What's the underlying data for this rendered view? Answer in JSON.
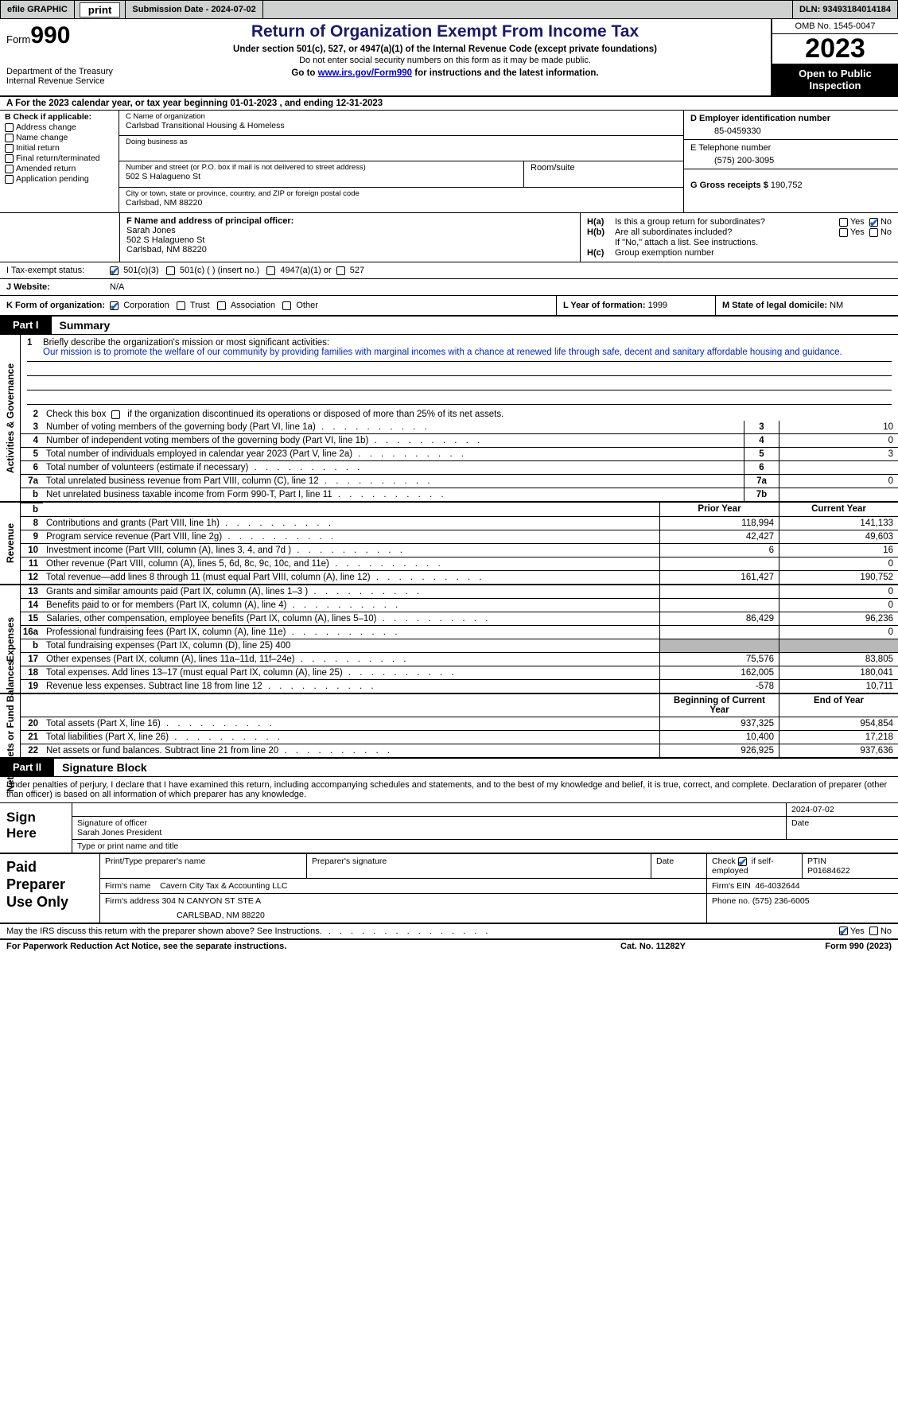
{
  "topbar": {
    "efile": "efile GRAPHIC",
    "print": "print",
    "submission": "Submission Date - 2024-07-02",
    "dln": "DLN: 93493184014184"
  },
  "header": {
    "form_label": "Form",
    "form_no": "990",
    "dept": "Department of the Treasury",
    "irs": "Internal Revenue Service",
    "title": "Return of Organization Exempt From Income Tax",
    "sub": "Under section 501(c), 527, or 4947(a)(1) of the Internal Revenue Code (except private foundations)",
    "sub2": "Do not enter social security numbers on this form as it may be made public.",
    "sub3_pre": "Go to ",
    "sub3_link": "www.irs.gov/Form990",
    "sub3_post": " for instructions and the latest information.",
    "omb": "OMB No. 1545-0047",
    "year": "2023",
    "public": "Open to Public Inspection"
  },
  "row_a": "A   For the 2023 calendar year, or tax year beginning 01-01-2023    , and ending 12-31-2023",
  "box_b": {
    "title": "B Check if applicable:",
    "opts": [
      "Address change",
      "Name change",
      "Initial return",
      "Final return/terminated",
      "Amended return",
      "Application pending"
    ],
    "c_lbl": "C Name of organization",
    "c_val": "Carlsbad Transitional Housing & Homeless",
    "dba_lbl": "Doing business as",
    "addr_lbl": "Number and street (or P.O. box if mail is not delivered to street address)",
    "addr_val": "502 S Halagueno St",
    "room_lbl": "Room/suite",
    "city_lbl": "City or town, state or province, country, and ZIP or foreign postal code",
    "city_val": "Carlsbad, NM   88220",
    "d_lbl": "D Employer identification number",
    "d_val": "85-0459330",
    "e_lbl": "E Telephone number",
    "e_val": "(575) 200-3095",
    "g_lbl": "G Gross receipts $",
    "g_val": "190,752"
  },
  "box_f": {
    "f_lbl": "F  Name and address of principal officer:",
    "f_name": "Sarah Jones",
    "f_addr1": "502 S Halagueno St",
    "f_addr2": "Carlsbad, NM   88220",
    "ha_lbl": "H(a)",
    "ha_txt": "Is this a group return for subordinates?",
    "hb_lbl": "H(b)",
    "hb_txt": "Are all subordinates included?",
    "hb_note": "If \"No,\" attach a list. See instructions.",
    "hc_lbl": "H(c)",
    "hc_txt": "Group exemption number",
    "yes": "Yes",
    "no": "No"
  },
  "tax_status": {
    "i_lbl": "I     Tax-exempt status:",
    "o1": "501(c)(3)",
    "o2": "501(c) (  ) (insert no.)",
    "o3": "4947(a)(1) or",
    "o4": "527",
    "j_lbl": "J    Website:",
    "j_val": "N/A"
  },
  "k_row": {
    "k_lbl": "K Form of organization:",
    "o1": "Corporation",
    "o2": "Trust",
    "o3": "Association",
    "o4": "Other",
    "l_lbl": "L Year of formation:",
    "l_val": "1999",
    "m_lbl": "M State of legal domicile:",
    "m_val": "NM"
  },
  "part1": {
    "box": "Part I",
    "title": "Summary",
    "mission_lbl": "Briefly describe the organization's mission or most significant activities:",
    "mission": "Our mission is to promote the welfare of our community by providing families with marginal incomes with a chance at renewed life through safe, decent and sanitary affordable housing and guidance.",
    "line2": "Check this box         if the organization discontinued its operations or disposed of more than 25% of its net assets.",
    "lines_gov": [
      {
        "n": "3",
        "d": "Number of voting members of the governing body (Part VI, line 1a)",
        "box": "3",
        "v": "10"
      },
      {
        "n": "4",
        "d": "Number of independent voting members of the governing body (Part VI, line 1b)",
        "box": "4",
        "v": "0"
      },
      {
        "n": "5",
        "d": "Total number of individuals employed in calendar year 2023 (Part V, line 2a)",
        "box": "5",
        "v": "3"
      },
      {
        "n": "6",
        "d": "Total number of volunteers (estimate if necessary)",
        "box": "6",
        "v": ""
      },
      {
        "n": "7a",
        "d": "Total unrelated business revenue from Part VIII, column (C), line 12",
        "box": "7a",
        "v": "0"
      },
      {
        "n": "b",
        "d": "Net unrelated business taxable income from Form 990-T, Part I, line 11",
        "box": "7b",
        "v": ""
      }
    ],
    "col_prior": "Prior Year",
    "col_curr": "Current Year",
    "lines_rev": [
      {
        "n": "8",
        "d": "Contributions and grants (Part VIII, line 1h)",
        "p": "118,994",
        "c": "141,133"
      },
      {
        "n": "9",
        "d": "Program service revenue (Part VIII, line 2g)",
        "p": "42,427",
        "c": "49,603"
      },
      {
        "n": "10",
        "d": "Investment income (Part VIII, column (A), lines 3, 4, and 7d )",
        "p": "6",
        "c": "16"
      },
      {
        "n": "11",
        "d": "Other revenue (Part VIII, column (A), lines 5, 6d, 8c, 9c, 10c, and 11e)",
        "p": "",
        "c": "0"
      },
      {
        "n": "12",
        "d": "Total revenue—add lines 8 through 11 (must equal Part VIII, column (A), line 12)",
        "p": "161,427",
        "c": "190,752"
      }
    ],
    "lines_exp": [
      {
        "n": "13",
        "d": "Grants and similar amounts paid (Part IX, column (A), lines 1–3 )",
        "p": "",
        "c": "0"
      },
      {
        "n": "14",
        "d": "Benefits paid to or for members (Part IX, column (A), line 4)",
        "p": "",
        "c": "0"
      },
      {
        "n": "15",
        "d": "Salaries, other compensation, employee benefits (Part IX, column (A), lines 5–10)",
        "p": "86,429",
        "c": "96,236"
      },
      {
        "n": "16a",
        "d": "Professional fundraising fees (Part IX, column (A), line 11e)",
        "p": "",
        "c": "0"
      },
      {
        "n": "b",
        "d": "Total fundraising expenses (Part IX, column (D), line 25) 400",
        "p": "shade",
        "c": "shade"
      },
      {
        "n": "17",
        "d": "Other expenses (Part IX, column (A), lines 11a–11d, 11f–24e)",
        "p": "75,576",
        "c": "83,805"
      },
      {
        "n": "18",
        "d": "Total expenses. Add lines 13–17 (must equal Part IX, column (A), line 25)",
        "p": "162,005",
        "c": "180,041"
      },
      {
        "n": "19",
        "d": "Revenue less expenses. Subtract line 18 from line 12",
        "p": "-578",
        "c": "10,711"
      }
    ],
    "col_beg": "Beginning of Current Year",
    "col_end": "End of Year",
    "lines_net": [
      {
        "n": "20",
        "d": "Total assets (Part X, line 16)",
        "p": "937,325",
        "c": "954,854"
      },
      {
        "n": "21",
        "d": "Total liabilities (Part X, line 26)",
        "p": "10,400",
        "c": "17,218"
      },
      {
        "n": "22",
        "d": "Net assets or fund balances. Subtract line 21 from line 20",
        "p": "926,925",
        "c": "937,636"
      }
    ],
    "side_gov": "Activities & Governance",
    "side_rev": "Revenue",
    "side_exp": "Expenses",
    "side_net": "Net Assets or Fund Balances"
  },
  "part2": {
    "box": "Part II",
    "title": "Signature Block",
    "decl": "Under penalties of perjury, I declare that I have examined this return, including accompanying schedules and statements, and to the best of my knowledge and belief, it is true, correct, and complete. Declaration of preparer (other than officer) is based on all information of which preparer has any knowledge.",
    "sign_here": "Sign Here",
    "sig_off_lbl": "Signature of officer",
    "sig_name": "Sarah Jones  President",
    "sig_type_lbl": "Type or print name and title",
    "sig_date_lbl": "Date",
    "sig_date": "2024-07-02",
    "paid": "Paid Preparer Use Only",
    "prep_name_lbl": "Print/Type preparer's name",
    "prep_sig_lbl": "Preparer's signature",
    "date_lbl": "Date",
    "check_lbl": "Check",
    "check_if": "if self-employed",
    "ptin_lbl": "PTIN",
    "ptin": "P01684622",
    "firm_name_lbl": "Firm's name",
    "firm_name": "Cavern City Tax & Accounting LLC",
    "firm_ein_lbl": "Firm's EIN",
    "firm_ein": "46-4032644",
    "firm_addr_lbl": "Firm's address",
    "firm_addr1": "304 N CANYON ST STE A",
    "firm_addr2": "CARLSBAD, NM   88220",
    "phone_lbl": "Phone no.",
    "phone": "(575) 236-6005",
    "discuss": "May the IRS discuss this return with the preparer shown above? See Instructions.",
    "yes": "Yes",
    "no": "No"
  },
  "footer": {
    "l": "For Paperwork Reduction Act Notice, see the separate instructions.",
    "m": "Cat. No. 11282Y",
    "r": "Form 990 (2023)"
  }
}
